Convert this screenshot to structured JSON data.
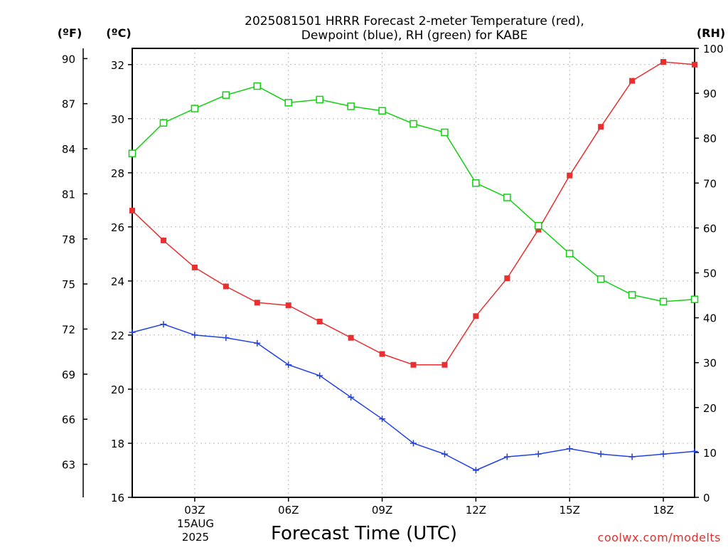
{
  "chart_data": {
    "type": "line",
    "title_lines": [
      "2025081501 HRRR Forecast 2-meter Temperature (red),",
      "Dewpoint (blue), RH (green) for KABE"
    ],
    "xlabel": "Forecast Time (UTC)",
    "x_tick_labels": [
      "03Z",
      "06Z",
      "09Z",
      "12Z",
      "15Z",
      "18Z"
    ],
    "x_tick_hours": [
      3,
      6,
      9,
      12,
      15,
      18
    ],
    "x_date_label": [
      "15AUG",
      "2025"
    ],
    "xlim": [
      1,
      19
    ],
    "axes": {
      "fahrenheit": {
        "unit_label": "(ºF)",
        "ticks": [
          63,
          66,
          69,
          72,
          75,
          78,
          81,
          84,
          87,
          90
        ]
      },
      "celsius": {
        "unit_label": "(ºC)",
        "ticks": [
          16,
          18,
          20,
          22,
          24,
          26,
          28,
          30,
          32
        ],
        "ylim": [
          16,
          32.6
        ]
      },
      "rh": {
        "unit_label": "(RH)",
        "ticks": [
          0,
          10,
          20,
          30,
          40,
          50,
          60,
          70,
          80,
          90,
          100
        ],
        "ylim": [
          0,
          100
        ]
      }
    },
    "grid": true,
    "credit": "coolwx.com/modelts",
    "series": [
      {
        "color": "#e83030",
        "axis": "celsius",
        "marker": "filled-square",
        "x": [
          1,
          2,
          3,
          4,
          5,
          6,
          7,
          8,
          9,
          10,
          11,
          12,
          13,
          14,
          15,
          16,
          17,
          18,
          19
        ],
        "y": [
          26.6,
          25.5,
          24.5,
          23.8,
          23.2,
          23.1,
          22.5,
          21.9,
          21.3,
          20.9,
          20.9,
          22.7,
          24.1,
          25.9,
          27.9,
          29.7,
          31.4,
          32.1,
          32.0
        ]
      },
      {
        "color": "#2040e8",
        "axis": "celsius",
        "marker": "plus",
        "x": [
          1,
          2,
          3,
          4,
          5,
          6,
          7,
          8,
          9,
          10,
          11,
          12,
          13,
          14,
          15,
          16,
          17,
          18,
          19
        ],
        "y": [
          22.1,
          22.4,
          22.0,
          21.9,
          21.7,
          20.9,
          20.5,
          19.7,
          18.9,
          18.0,
          17.6,
          17.0,
          17.5,
          17.6,
          17.8,
          17.6,
          17.5,
          17.6,
          17.7
        ]
      },
      {
        "color": "#10d010",
        "axis": "rh",
        "marker": "open-square",
        "x": [
          1,
          2,
          3,
          4,
          5,
          6,
          7,
          8,
          9,
          10,
          11,
          12,
          13,
          14,
          15,
          16,
          17,
          18,
          19
        ],
        "y": [
          76.6,
          83.4,
          86.6,
          89.6,
          91.6,
          87.9,
          88.6,
          87.1,
          86.1,
          83.2,
          81.3,
          70.0,
          66.8,
          60.5,
          54.3,
          48.6,
          45.1,
          43.6,
          44.1
        ]
      }
    ]
  }
}
